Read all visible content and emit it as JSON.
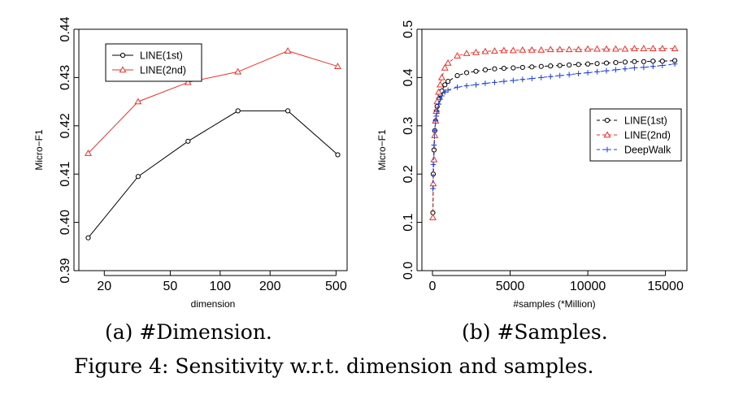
{
  "figure_caption": "Figure 4: Sensitivity w.r.t. dimension and samples.",
  "colors": {
    "line1": "#000000",
    "line2": "#e8312a",
    "deepwalk": "#1f3fd8"
  },
  "chart_data": [
    {
      "type": "line",
      "caption": "(a) #Dimension.",
      "xlabel": "dimension",
      "ylabel": "Micro−F1",
      "xscale": "log",
      "x": [
        16,
        32,
        64,
        128,
        256,
        512
      ],
      "xticks": [
        20,
        50,
        100,
        200,
        500
      ],
      "xtick_labels": [
        "20",
        "50",
        "100",
        "200",
        "500"
      ],
      "ylim": [
        0.39,
        0.44
      ],
      "yticks": [
        0.39,
        0.4,
        0.41,
        0.42,
        0.43,
        0.44
      ],
      "ytick_labels": [
        "0.39",
        "0.40",
        "0.41",
        "0.42",
        "0.43",
        "0.44"
      ],
      "legend_position": "top-left",
      "series": [
        {
          "name": "LINE(1st)",
          "marker": "circle",
          "color": "#000000",
          "dashed": false,
          "values": [
            0.3968,
            0.4095,
            0.4168,
            0.4231,
            0.4231,
            0.414
          ]
        },
        {
          "name": "LINE(2nd)",
          "marker": "triangle",
          "color": "#e8312a",
          "dashed": false,
          "values": [
            0.4143,
            0.425,
            0.429,
            0.4312,
            0.4355,
            0.4323
          ]
        }
      ]
    },
    {
      "type": "line",
      "caption": "(b) #Samples.",
      "xlabel": "#samples (*Million)",
      "ylabel": "Micro−F1",
      "xlim": [
        0,
        15700
      ],
      "xticks": [
        0,
        5000,
        10000,
        15000
      ],
      "xtick_labels": [
        "0",
        "5000",
        "10000",
        "15000"
      ],
      "ylim": [
        0.0,
        0.5
      ],
      "yticks": [
        0.0,
        0.1,
        0.2,
        0.3,
        0.4,
        0.5
      ],
      "ytick_labels": [
        "0.0",
        "0.1",
        "0.2",
        "0.3",
        "0.4",
        "0.5"
      ],
      "legend_position": "middle-right",
      "series": [
        {
          "name": "LINE(1st)",
          "marker": "circle",
          "color": "#000000",
          "dashed": true,
          "x": [
            25,
            50,
            100,
            150,
            200,
            250,
            300,
            400,
            500,
            600,
            800,
            1000,
            1600,
            2200,
            2800,
            3400,
            4000,
            4600,
            5200,
            5800,
            6400,
            7000,
            7600,
            8200,
            8800,
            9400,
            10000,
            10600,
            11200,
            11800,
            12400,
            13000,
            13600,
            14200,
            14800,
            15600
          ],
          "values": [
            0.12,
            0.2,
            0.25,
            0.29,
            0.31,
            0.33,
            0.34,
            0.355,
            0.365,
            0.372,
            0.385,
            0.392,
            0.404,
            0.41,
            0.413,
            0.416,
            0.418,
            0.419,
            0.42,
            0.421,
            0.422,
            0.423,
            0.424,
            0.425,
            0.426,
            0.427,
            0.428,
            0.429,
            0.43,
            0.431,
            0.432,
            0.433,
            0.433,
            0.434,
            0.434,
            0.435
          ]
        },
        {
          "name": "LINE(2nd)",
          "marker": "triangle",
          "color": "#e8312a",
          "dashed": true,
          "x": [
            25,
            50,
            100,
            150,
            200,
            250,
            300,
            400,
            500,
            600,
            800,
            1000,
            1600,
            2200,
            2800,
            3400,
            4000,
            4600,
            5200,
            5800,
            6400,
            7000,
            7600,
            8200,
            8800,
            9400,
            10000,
            10600,
            11200,
            11800,
            12400,
            13000,
            13600,
            14200,
            14800,
            15600
          ],
          "values": [
            0.11,
            0.18,
            0.23,
            0.28,
            0.31,
            0.33,
            0.35,
            0.37,
            0.385,
            0.4,
            0.42,
            0.43,
            0.445,
            0.45,
            0.452,
            0.454,
            0.455,
            0.456,
            0.456,
            0.457,
            0.457,
            0.457,
            0.458,
            0.458,
            0.458,
            0.458,
            0.459,
            0.459,
            0.459,
            0.459,
            0.459,
            0.46,
            0.46,
            0.46,
            0.46,
            0.46
          ]
        },
        {
          "name": "DeepWalk",
          "marker": "plus",
          "color": "#1f3fd8",
          "dashed": true,
          "x": [
            25,
            50,
            100,
            150,
            200,
            250,
            300,
            400,
            500,
            600,
            800,
            1000,
            1600,
            2200,
            2800,
            3400,
            4000,
            4600,
            5200,
            5800,
            6400,
            7000,
            7600,
            8200,
            8800,
            9400,
            10000,
            10600,
            11200,
            11800,
            12400,
            13000,
            13600,
            14200,
            14800,
            15600
          ],
          "values": [
            0.17,
            0.22,
            0.26,
            0.29,
            0.31,
            0.32,
            0.33,
            0.345,
            0.355,
            0.362,
            0.37,
            0.374,
            0.38,
            0.383,
            0.385,
            0.388,
            0.39,
            0.392,
            0.394,
            0.396,
            0.398,
            0.4,
            0.402,
            0.404,
            0.406,
            0.408,
            0.41,
            0.412,
            0.414,
            0.416,
            0.418,
            0.42,
            0.421,
            0.423,
            0.425,
            0.428
          ]
        }
      ]
    }
  ]
}
